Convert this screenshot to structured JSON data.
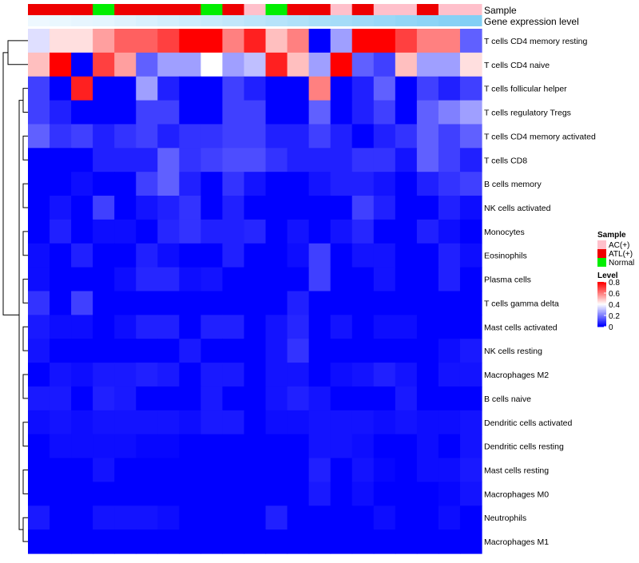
{
  "chart_data": {
    "type": "heatmap",
    "title": "",
    "xlabel": "",
    "ylabel": "",
    "annotation_rows": [
      {
        "key": "sample",
        "label": "Sample"
      },
      {
        "key": "expression",
        "label": "Gene expression level"
      }
    ],
    "rows": [
      "T cells CD4 memory resting",
      "T cells CD4 naive",
      "T cells follicular helper",
      "T cells regulatory  Tregs",
      "T cells CD4 memory activated",
      "T cells CD8",
      "B cells memory",
      "NK cells activated",
      "Monocytes",
      "Eosinophils",
      "Plasma cells",
      "T cells gamma delta",
      "Mast cells activated",
      "NK cells resting",
      "Macrophages M2",
      "B cells naive",
      "Dendritic cells activated",
      "Dendritic cells resting",
      "Mast cells resting",
      "Macrophages M0",
      "Neutrophils",
      "Macrophages M1"
    ],
    "sample_annotation": [
      "ATL(+)",
      "ATL(+)",
      "ATL(+)",
      "Normal",
      "ATL(+)",
      "ATL(+)",
      "ATL(+)",
      "ATL(+)",
      "Normal",
      "ATL(+)",
      "AC(+)",
      "Normal",
      "ATL(+)",
      "ATL(+)",
      "AC(+)",
      "ATL(+)",
      "AC(+)",
      "AC(+)",
      "ATL(+)",
      "AC(+)",
      "AC(+)"
    ],
    "expression_annotation": [
      0.02,
      0.05,
      0.08,
      0.1,
      0.15,
      0.2,
      0.25,
      0.3,
      0.35,
      0.4,
      0.45,
      0.5,
      0.55,
      0.6,
      0.65,
      0.7,
      0.75,
      0.8,
      0.85,
      0.9,
      0.95
    ],
    "values": [
      [
        0.35,
        0.45,
        0.45,
        0.55,
        0.65,
        0.65,
        0.7,
        0.8,
        0.8,
        0.6,
        0.75,
        0.5,
        0.6,
        0.0,
        0.25,
        0.8,
        0.8,
        0.7,
        0.6,
        0.6,
        0.15
      ],
      [
        0.5,
        0.8,
        0.0,
        0.7,
        0.55,
        0.15,
        0.25,
        0.25,
        0.4,
        0.25,
        0.3,
        0.75,
        0.5,
        0.25,
        0.8,
        0.15,
        0.1,
        0.5,
        0.25,
        0.25,
        0.45
      ],
      [
        0.1,
        0.0,
        0.75,
        0.0,
        0.0,
        0.25,
        0.05,
        0.0,
        0.0,
        0.1,
        0.05,
        0.0,
        0.0,
        0.6,
        0.0,
        0.05,
        0.15,
        0.0,
        0.1,
        0.05,
        0.1
      ],
      [
        0.1,
        0.05,
        0.0,
        0.0,
        0.0,
        0.1,
        0.1,
        0.0,
        0.0,
        0.1,
        0.1,
        0.0,
        0.0,
        0.15,
        0.0,
        0.05,
        0.1,
        0.0,
        0.15,
        0.2,
        0.25
      ],
      [
        0.15,
        0.08,
        0.1,
        0.05,
        0.08,
        0.1,
        0.05,
        0.08,
        0.08,
        0.1,
        0.1,
        0.05,
        0.05,
        0.1,
        0.05,
        0.0,
        0.05,
        0.08,
        0.15,
        0.1,
        0.15
      ],
      [
        0.0,
        0.0,
        0.0,
        0.05,
        0.05,
        0.05,
        0.15,
        0.08,
        0.1,
        0.12,
        0.12,
        0.08,
        0.05,
        0.05,
        0.05,
        0.08,
        0.08,
        0.03,
        0.15,
        0.1,
        0.05
      ],
      [
        0.0,
        0.0,
        0.02,
        0.0,
        0.0,
        0.1,
        0.15,
        0.05,
        0.0,
        0.08,
        0.03,
        0.0,
        0.0,
        0.03,
        0.05,
        0.05,
        0.03,
        0.0,
        0.05,
        0.08,
        0.1
      ],
      [
        0.0,
        0.03,
        0.0,
        0.1,
        0.0,
        0.03,
        0.05,
        0.08,
        0.0,
        0.05,
        0.0,
        0.0,
        0.0,
        0.0,
        0.0,
        0.1,
        0.05,
        0.0,
        0.0,
        0.05,
        0.02
      ],
      [
        0.0,
        0.05,
        0.0,
        0.02,
        0.02,
        0.0,
        0.06,
        0.08,
        0.05,
        0.05,
        0.06,
        0.0,
        0.03,
        0.0,
        0.03,
        0.06,
        0.0,
        0.0,
        0.05,
        0.02,
        0.0
      ],
      [
        0.02,
        0.0,
        0.05,
        0.0,
        0.0,
        0.05,
        0.02,
        0.0,
        0.0,
        0.05,
        0.0,
        0.0,
        0.02,
        0.1,
        0.0,
        0.03,
        0.03,
        0.0,
        0.0,
        0.05,
        0.02
      ],
      [
        0.02,
        0.0,
        0.0,
        0.0,
        0.02,
        0.06,
        0.06,
        0.02,
        0.03,
        0.0,
        0.0,
        0.0,
        0.0,
        0.1,
        0.0,
        0.0,
        0.03,
        0.0,
        0.0,
        0.05,
        0.0
      ],
      [
        0.08,
        0.0,
        0.1,
        0.0,
        0.0,
        0.0,
        0.0,
        0.0,
        0.0,
        0.0,
        0.0,
        0.0,
        0.05,
        0.0,
        0.0,
        0.0,
        0.0,
        0.0,
        0.0,
        0.0,
        0.0
      ],
      [
        0.04,
        0.02,
        0.02,
        0.0,
        0.02,
        0.05,
        0.05,
        0.0,
        0.05,
        0.05,
        0.0,
        0.03,
        0.06,
        0.0,
        0.03,
        0.0,
        0.02,
        0.02,
        0.0,
        0.0,
        0.0
      ],
      [
        0.03,
        0.0,
        0.0,
        0.0,
        0.0,
        0.0,
        0.0,
        0.04,
        0.0,
        0.0,
        0.0,
        0.03,
        0.08,
        0.0,
        0.0,
        0.0,
        0.0,
        0.0,
        0.0,
        0.02,
        0.04
      ],
      [
        0.0,
        0.03,
        0.02,
        0.04,
        0.04,
        0.05,
        0.04,
        0.0,
        0.04,
        0.04,
        0.0,
        0.03,
        0.03,
        0.0,
        0.02,
        0.03,
        0.05,
        0.03,
        0.0,
        0.03,
        0.03
      ],
      [
        0.04,
        0.04,
        0.0,
        0.05,
        0.04,
        0.0,
        0.0,
        0.0,
        0.04,
        0.0,
        0.0,
        0.03,
        0.05,
        0.03,
        0.0,
        0.0,
        0.0,
        0.04,
        0.0,
        0.0,
        0.0
      ],
      [
        0.02,
        0.03,
        0.02,
        0.03,
        0.03,
        0.03,
        0.03,
        0.02,
        0.04,
        0.04,
        0.0,
        0.02,
        0.02,
        0.03,
        0.03,
        0.03,
        0.02,
        0.03,
        0.02,
        0.02,
        0.03
      ],
      [
        0.0,
        0.02,
        0.02,
        0.02,
        0.02,
        0.01,
        0.01,
        0.0,
        0.0,
        0.0,
        0.0,
        0.0,
        0.0,
        0.03,
        0.03,
        0.02,
        0.0,
        0.0,
        0.02,
        0.0,
        0.03
      ],
      [
        0.0,
        0.0,
        0.0,
        0.03,
        0.0,
        0.0,
        0.0,
        0.0,
        0.0,
        0.0,
        0.0,
        0.0,
        0.0,
        0.05,
        0.0,
        0.03,
        0.01,
        0.0,
        0.02,
        0.02,
        0.04
      ],
      [
        0.0,
        0.0,
        0.0,
        0.0,
        0.0,
        0.0,
        0.0,
        0.0,
        0.0,
        0.0,
        0.0,
        0.0,
        0.0,
        0.04,
        0.0,
        0.02,
        0.0,
        0.0,
        0.0,
        0.01,
        0.03
      ],
      [
        0.04,
        0.0,
        0.0,
        0.03,
        0.03,
        0.03,
        0.02,
        0.0,
        0.0,
        0.0,
        0.0,
        0.05,
        0.0,
        0.0,
        0.0,
        0.0,
        0.02,
        0.0,
        0.0,
        0.02,
        0.0
      ],
      [
        0.0,
        0.0,
        0.0,
        0.0,
        0.0,
        0.0,
        0.0,
        0.0,
        0.0,
        0.0,
        0.0,
        0.0,
        0.0,
        0.0,
        0.0,
        0.0,
        0.0,
        0.0,
        0.0,
        0.0,
        0.0
      ]
    ],
    "color_scale": {
      "min": 0,
      "max": 0.8,
      "stops": [
        {
          "v": 0,
          "color": "#0000ff"
        },
        {
          "v": 0.4,
          "color": "#ffffff"
        },
        {
          "v": 0.8,
          "color": "#ff0000"
        }
      ]
    },
    "sample_colors": {
      "AC(+)": "#ffc0cb",
      "ATL(+)": "#ee0000",
      "Normal": "#00ee00"
    },
    "expression_colors": {
      "low": "#f0f9ff",
      "high": "#7ccdf4"
    },
    "legend": {
      "sample": {
        "title": "Sample",
        "entries": [
          "AC(+)",
          "ATL(+)",
          "Normal"
        ]
      },
      "level": {
        "title": "Level",
        "ticks": [
          0.8,
          0.6,
          0.4,
          0.2,
          0
        ]
      }
    },
    "dendrogram": {
      "merges": [
        [
          0,
          1
        ],
        [
          2,
          3
        ],
        [
          4,
          5
        ],
        [
          6,
          7
        ],
        [
          8,
          9
        ],
        [
          10,
          11
        ],
        [
          12,
          13
        ],
        [
          14,
          15
        ],
        [
          16,
          17
        ],
        [
          18,
          19
        ],
        [
          20,
          21
        ]
      ]
    }
  }
}
